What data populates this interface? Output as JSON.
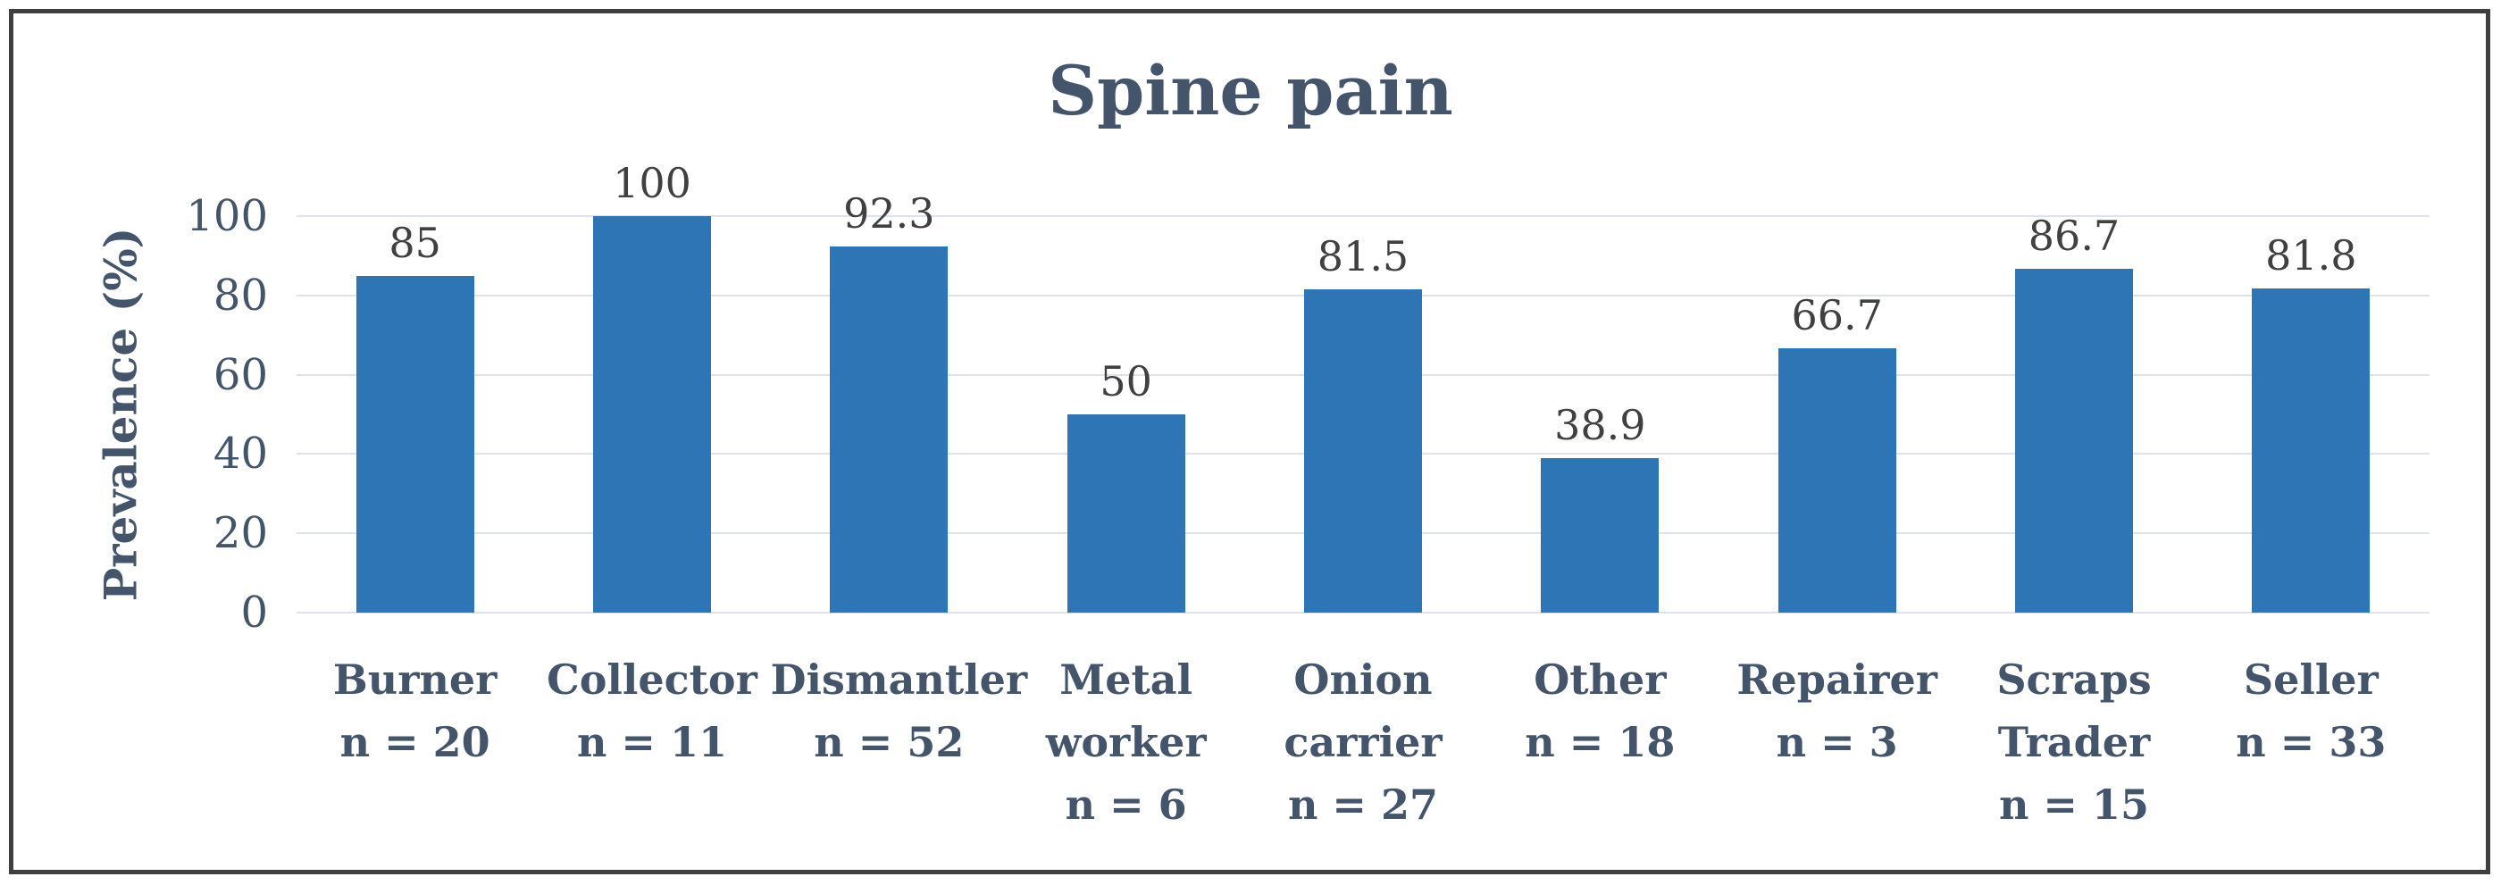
{
  "chart_data": {
    "type": "bar",
    "title": "Spine pain",
    "xlabel": "",
    "ylabel": "Prevalence (%)",
    "ylim": [
      0,
      100
    ],
    "yticks": [
      0,
      20,
      40,
      60,
      80,
      100
    ],
    "grid": "horizontal",
    "legend": "none",
    "categories": [
      {
        "name": "Burner",
        "n": "n = 20"
      },
      {
        "name": "Collector",
        "n": "n = 11"
      },
      {
        "name": "Dismantler",
        "n": "n = 52"
      },
      {
        "name": "Metal worker",
        "n": "n = 6"
      },
      {
        "name": "Onion carrier",
        "n": "n = 27"
      },
      {
        "name": "Other",
        "n": "n = 18"
      },
      {
        "name": "Repairer",
        "n": "n = 3"
      },
      {
        "name": "Scraps Trader",
        "n": "n = 15"
      },
      {
        "name": "Seller",
        "n": "n = 33"
      }
    ],
    "values": [
      85,
      100,
      92.3,
      50,
      81.5,
      38.9,
      66.7,
      86.7,
      81.8
    ],
    "value_labels": [
      "85",
      "100",
      "92.3",
      "50",
      "81.5",
      "38.9",
      "66.7",
      "86.7",
      "81.8"
    ]
  },
  "colors": {
    "bar": "#2E75B6",
    "gridline": "#dce3ee",
    "axis_text": "#44546A",
    "data_label": "#404040",
    "frame_border": "#3f3f3f",
    "background": "#ffffff"
  }
}
